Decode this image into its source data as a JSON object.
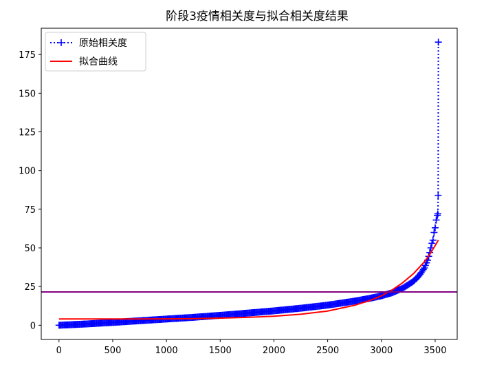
{
  "chart_data": {
    "type": "line",
    "title": "阶段3疫情相关度与拟合相关度结果",
    "xlabel": "",
    "ylabel": "",
    "xlim": [
      -165,
      3705
    ],
    "ylim": [
      -9.2,
      192
    ],
    "xticks": [
      0,
      500,
      1000,
      1500,
      2000,
      2500,
      3000,
      3500
    ],
    "yticks": [
      0,
      25,
      50,
      75,
      100,
      125,
      150,
      175
    ],
    "grid": false,
    "legend_position": "upper-left",
    "series": [
      {
        "name": "原始相关度",
        "style": "dotted-line-plus-markers",
        "color": "#0000ff",
        "x": [
          0,
          100,
          250,
          500,
          750,
          1000,
          1250,
          1500,
          1750,
          2000,
          2250,
          2500,
          2750,
          2900,
          3000,
          3100,
          3200,
          3300,
          3350,
          3400,
          3430,
          3450,
          3460,
          3470,
          3480,
          3490,
          3500,
          3505,
          3510,
          3515,
          3520,
          3525,
          3528,
          3530
        ],
        "y": [
          0,
          0.3,
          0.8,
          1.8,
          2.9,
          4.0,
          5.1,
          6.4,
          7.8,
          9.3,
          11.0,
          13.0,
          15.6,
          17.5,
          19.0,
          21.0,
          24.0,
          28.5,
          32.0,
          37.0,
          42.0,
          47.0,
          50.0,
          53.0,
          55.0,
          60.0,
          63.0,
          66.0,
          68.0,
          70.0,
          71.0,
          72.0,
          84.0,
          183.0
        ]
      },
      {
        "name": "拟合曲线",
        "style": "solid",
        "color": "#ff0000",
        "x": [
          0,
          250,
          500,
          750,
          1000,
          1250,
          1500,
          1750,
          2000,
          2250,
          2500,
          2750,
          2900,
          3000,
          3100,
          3200,
          3300,
          3400,
          3450,
          3500,
          3530
        ],
        "y": [
          4.0,
          4.0,
          4.0,
          4.05,
          4.1,
          4.3,
          4.6,
          5.1,
          5.8,
          7.1,
          9.2,
          12.9,
          16.2,
          19.0,
          22.8,
          27.6,
          33.5,
          41.0,
          45.8,
          51.5,
          55.0
        ]
      }
    ],
    "horizontal_line": {
      "y": 21.5,
      "color": "#800080"
    }
  }
}
